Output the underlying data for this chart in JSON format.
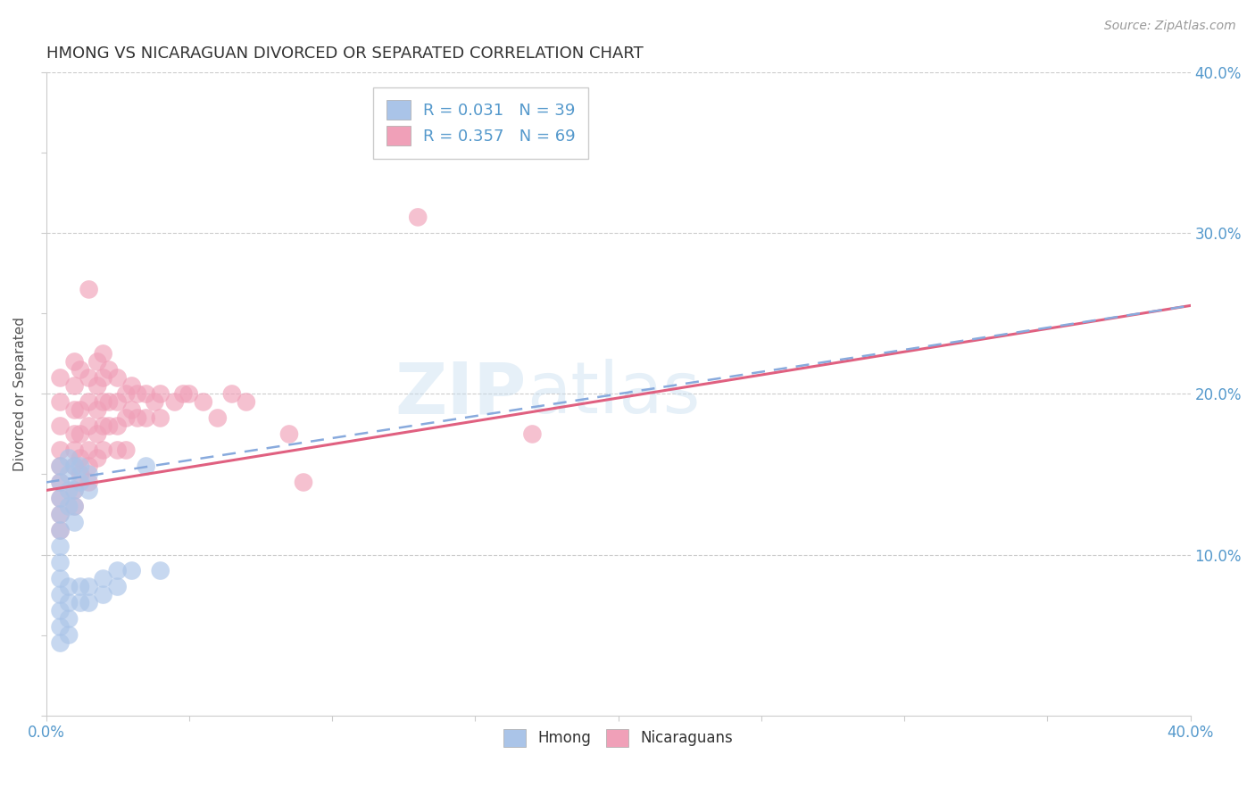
{
  "title": "HMONG VS NICARAGUAN DIVORCED OR SEPARATED CORRELATION CHART",
  "source": "Source: ZipAtlas.com",
  "ylabel": "Divorced or Separated",
  "xlim": [
    0.0,
    0.4
  ],
  "ylim": [
    0.0,
    0.4
  ],
  "xticks": [
    0.0,
    0.05,
    0.1,
    0.15,
    0.2,
    0.25,
    0.3,
    0.35,
    0.4
  ],
  "yticks": [
    0.0,
    0.05,
    0.1,
    0.15,
    0.2,
    0.25,
    0.3,
    0.35,
    0.4
  ],
  "ytick_labels_show": [
    0.1,
    0.2,
    0.3,
    0.4
  ],
  "hmong_color": "#aac4e8",
  "nicaraguan_color": "#f0a0b8",
  "hmong_R": 0.031,
  "hmong_N": 39,
  "nicaraguan_R": 0.357,
  "nicaraguan_N": 69,
  "watermark": "ZIPAtlas",
  "tick_color": "#5599cc",
  "hmong_line_color": "#88aadd",
  "hmong_line_style": "--",
  "nicaraguan_line_color": "#e06080",
  "nicaraguan_line_style": "-",
  "hmong_scatter": [
    [
      0.005,
      0.155
    ],
    [
      0.005,
      0.145
    ],
    [
      0.005,
      0.135
    ],
    [
      0.005,
      0.125
    ],
    [
      0.005,
      0.115
    ],
    [
      0.005,
      0.105
    ],
    [
      0.005,
      0.095
    ],
    [
      0.005,
      0.085
    ],
    [
      0.005,
      0.075
    ],
    [
      0.005,
      0.065
    ],
    [
      0.005,
      0.055
    ],
    [
      0.005,
      0.045
    ],
    [
      0.008,
      0.16
    ],
    [
      0.008,
      0.15
    ],
    [
      0.008,
      0.14
    ],
    [
      0.008,
      0.13
    ],
    [
      0.008,
      0.08
    ],
    [
      0.008,
      0.07
    ],
    [
      0.008,
      0.06
    ],
    [
      0.008,
      0.05
    ],
    [
      0.01,
      0.155
    ],
    [
      0.01,
      0.14
    ],
    [
      0.01,
      0.13
    ],
    [
      0.01,
      0.12
    ],
    [
      0.012,
      0.155
    ],
    [
      0.012,
      0.145
    ],
    [
      0.012,
      0.08
    ],
    [
      0.012,
      0.07
    ],
    [
      0.015,
      0.15
    ],
    [
      0.015,
      0.14
    ],
    [
      0.015,
      0.08
    ],
    [
      0.015,
      0.07
    ],
    [
      0.02,
      0.085
    ],
    [
      0.02,
      0.075
    ],
    [
      0.025,
      0.09
    ],
    [
      0.025,
      0.08
    ],
    [
      0.03,
      0.09
    ],
    [
      0.035,
      0.155
    ],
    [
      0.04,
      0.09
    ]
  ],
  "nicaraguan_scatter": [
    [
      0.005,
      0.21
    ],
    [
      0.005,
      0.195
    ],
    [
      0.005,
      0.18
    ],
    [
      0.005,
      0.165
    ],
    [
      0.005,
      0.155
    ],
    [
      0.005,
      0.145
    ],
    [
      0.005,
      0.135
    ],
    [
      0.005,
      0.125
    ],
    [
      0.005,
      0.115
    ],
    [
      0.01,
      0.22
    ],
    [
      0.01,
      0.205
    ],
    [
      0.01,
      0.19
    ],
    [
      0.01,
      0.175
    ],
    [
      0.01,
      0.165
    ],
    [
      0.01,
      0.155
    ],
    [
      0.01,
      0.14
    ],
    [
      0.01,
      0.13
    ],
    [
      0.012,
      0.215
    ],
    [
      0.012,
      0.19
    ],
    [
      0.012,
      0.175
    ],
    [
      0.012,
      0.16
    ],
    [
      0.012,
      0.15
    ],
    [
      0.015,
      0.265
    ],
    [
      0.015,
      0.21
    ],
    [
      0.015,
      0.195
    ],
    [
      0.015,
      0.18
    ],
    [
      0.015,
      0.165
    ],
    [
      0.015,
      0.155
    ],
    [
      0.015,
      0.145
    ],
    [
      0.018,
      0.22
    ],
    [
      0.018,
      0.205
    ],
    [
      0.018,
      0.19
    ],
    [
      0.018,
      0.175
    ],
    [
      0.018,
      0.16
    ],
    [
      0.02,
      0.225
    ],
    [
      0.02,
      0.21
    ],
    [
      0.02,
      0.195
    ],
    [
      0.02,
      0.18
    ],
    [
      0.02,
      0.165
    ],
    [
      0.022,
      0.215
    ],
    [
      0.022,
      0.195
    ],
    [
      0.022,
      0.18
    ],
    [
      0.025,
      0.21
    ],
    [
      0.025,
      0.195
    ],
    [
      0.025,
      0.18
    ],
    [
      0.025,
      0.165
    ],
    [
      0.028,
      0.2
    ],
    [
      0.028,
      0.185
    ],
    [
      0.028,
      0.165
    ],
    [
      0.03,
      0.205
    ],
    [
      0.03,
      0.19
    ],
    [
      0.032,
      0.2
    ],
    [
      0.032,
      0.185
    ],
    [
      0.035,
      0.2
    ],
    [
      0.035,
      0.185
    ],
    [
      0.038,
      0.195
    ],
    [
      0.04,
      0.2
    ],
    [
      0.04,
      0.185
    ],
    [
      0.045,
      0.195
    ],
    [
      0.048,
      0.2
    ],
    [
      0.05,
      0.2
    ],
    [
      0.055,
      0.195
    ],
    [
      0.06,
      0.185
    ],
    [
      0.065,
      0.2
    ],
    [
      0.07,
      0.195
    ],
    [
      0.085,
      0.175
    ],
    [
      0.09,
      0.145
    ],
    [
      0.17,
      0.175
    ],
    [
      0.13,
      0.31
    ]
  ],
  "hmong_trend": [
    0.145,
    0.255
  ],
  "nicaraguan_trend": [
    0.14,
    0.255
  ]
}
